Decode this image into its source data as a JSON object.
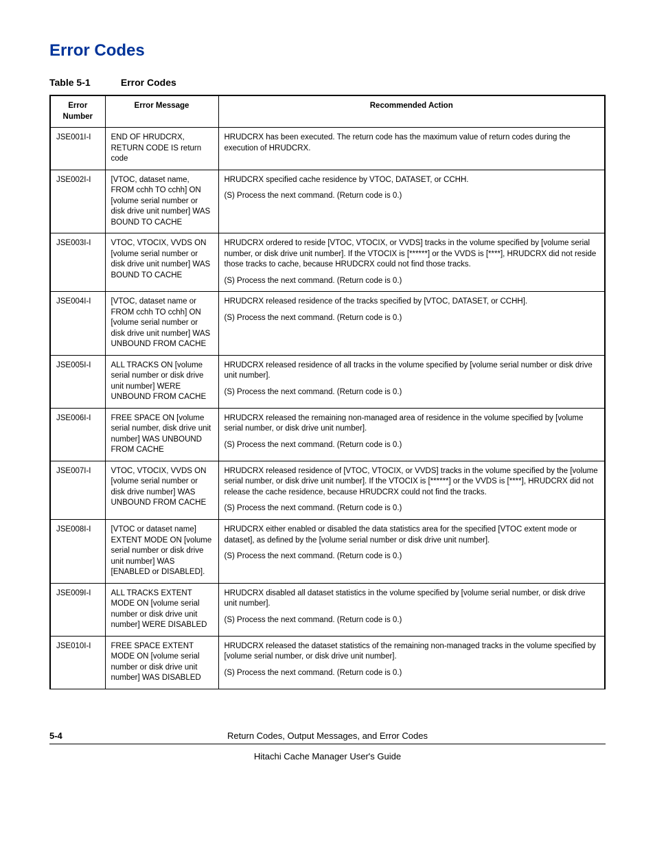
{
  "section_title": "Error Codes",
  "table_caption_num": "Table 5-1",
  "table_caption_title": "Error Codes",
  "headers": {
    "number": "Error Number",
    "message": "Error Message",
    "action": "Recommended Action"
  },
  "rows": [
    {
      "num": "JSE001I-I",
      "msg": "END OF HRUDCRX, RETURN CODE IS return code",
      "act": [
        "HRUDCRX has been executed. The return code has the maximum value of return codes during the execution of HRUDCRX."
      ]
    },
    {
      "num": "JSE002I-I",
      "msg": "[VTOC, dataset name, FROM cchh TO cchh] ON [volume serial number or disk drive unit number] WAS BOUND TO CACHE",
      "act": [
        "HRUDCRX specified cache residence by VTOC, DATASET, or CCHH.",
        "(S) Process the next command. (Return code is 0.)"
      ]
    },
    {
      "num": "JSE003I-I",
      "msg": "VTOC, VTOCIX, VVDS ON [volume serial number or disk drive unit number] WAS BOUND TO CACHE",
      "act": [
        "HRUDCRX ordered to reside [VTOC, VTOCIX, or VVDS] tracks in the volume specified by [volume serial number, or disk drive unit number]. If the VTOCIX is [******] or the VVDS is [****], HRUDCRX did not reside those tracks to cache, because HRUDCRX could not find those tracks.",
        "(S) Process the next command. (Return code is 0.)"
      ]
    },
    {
      "num": "JSE004I-I",
      "msg": "[VTOC, dataset name or FROM cchh TO cchh] ON [volume serial number or disk drive unit number] WAS UNBOUND FROM CACHE",
      "act": [
        "HRUDCRX released residence of the tracks specified by [VTOC, DATASET, or CCHH].",
        "(S) Process the next command. (Return code is 0.)"
      ]
    },
    {
      "num": "JSE005I-I",
      "msg": "ALL TRACKS ON [volume serial number or disk drive unit number] WERE UNBOUND FROM CACHE",
      "act": [
        "HRUDCRX released residence of all tracks in the volume specified by [volume serial number or disk drive unit number].",
        "(S) Process the next command. (Return code is 0.)"
      ]
    },
    {
      "num": "JSE006I-I",
      "msg": "FREE SPACE ON [volume serial number, disk drive unit number] WAS UNBOUND FROM CACHE",
      "act": [
        "HRUDCRX released the remaining non-managed area of residence in the volume specified by [volume serial number, or disk drive unit number].",
        "(S) Process the next command. (Return code is 0.)"
      ]
    },
    {
      "num": "JSE007I-I",
      "msg": "VTOC, VTOCIX, VVDS ON [volume serial number or disk drive number] WAS UNBOUND FROM CACHE",
      "act": [
        "HRUDCRX released residence of [VTOC, VTOCIX, or VVDS] tracks in the volume specified by the [volume serial number, or disk drive unit number]. If the VTOCIX is [******] or the VVDS is [****], HRUDCRX did not release the cache residence, because HRUDCRX could not find the tracks.",
        "(S) Process the next command. (Return code is 0.)"
      ]
    },
    {
      "num": "JSE008I-I",
      "msg": "[VTOC or dataset name] EXTENT MODE ON [volume serial number or disk drive unit number] WAS [ENABLED or DISABLED].",
      "act": [
        "HRUDCRX either enabled or disabled the data statistics area for the specified [VTOC extent mode or dataset], as defined by the [volume serial number or disk drive unit number].",
        "(S) Process the next command. (Return code is 0.)"
      ]
    },
    {
      "num": "JSE009I-I",
      "msg": "ALL TRACKS EXTENT MODE ON [volume serial number or disk drive unit number] WERE DISABLED",
      "act": [
        "HRUDCRX disabled all dataset statistics in the volume specified by [volume serial number, or disk drive unit number].",
        "(S) Process the next command. (Return code is 0.)"
      ]
    },
    {
      "num": "JSE010I-I",
      "msg": "FREE SPACE EXTENT MODE ON [volume serial number or disk drive unit number] WAS DISABLED",
      "act": [
        "HRUDCRX released the dataset statistics of the remaining non-managed tracks in the volume specified by [volume serial number, or disk drive unit number].",
        "(S) Process the next command. (Return code is 0.)"
      ]
    }
  ],
  "footer": {
    "page": "5-4",
    "title1": "Return Codes, Output Messages, and Error Codes",
    "title2": "Hitachi Cache Manager User's Guide"
  }
}
